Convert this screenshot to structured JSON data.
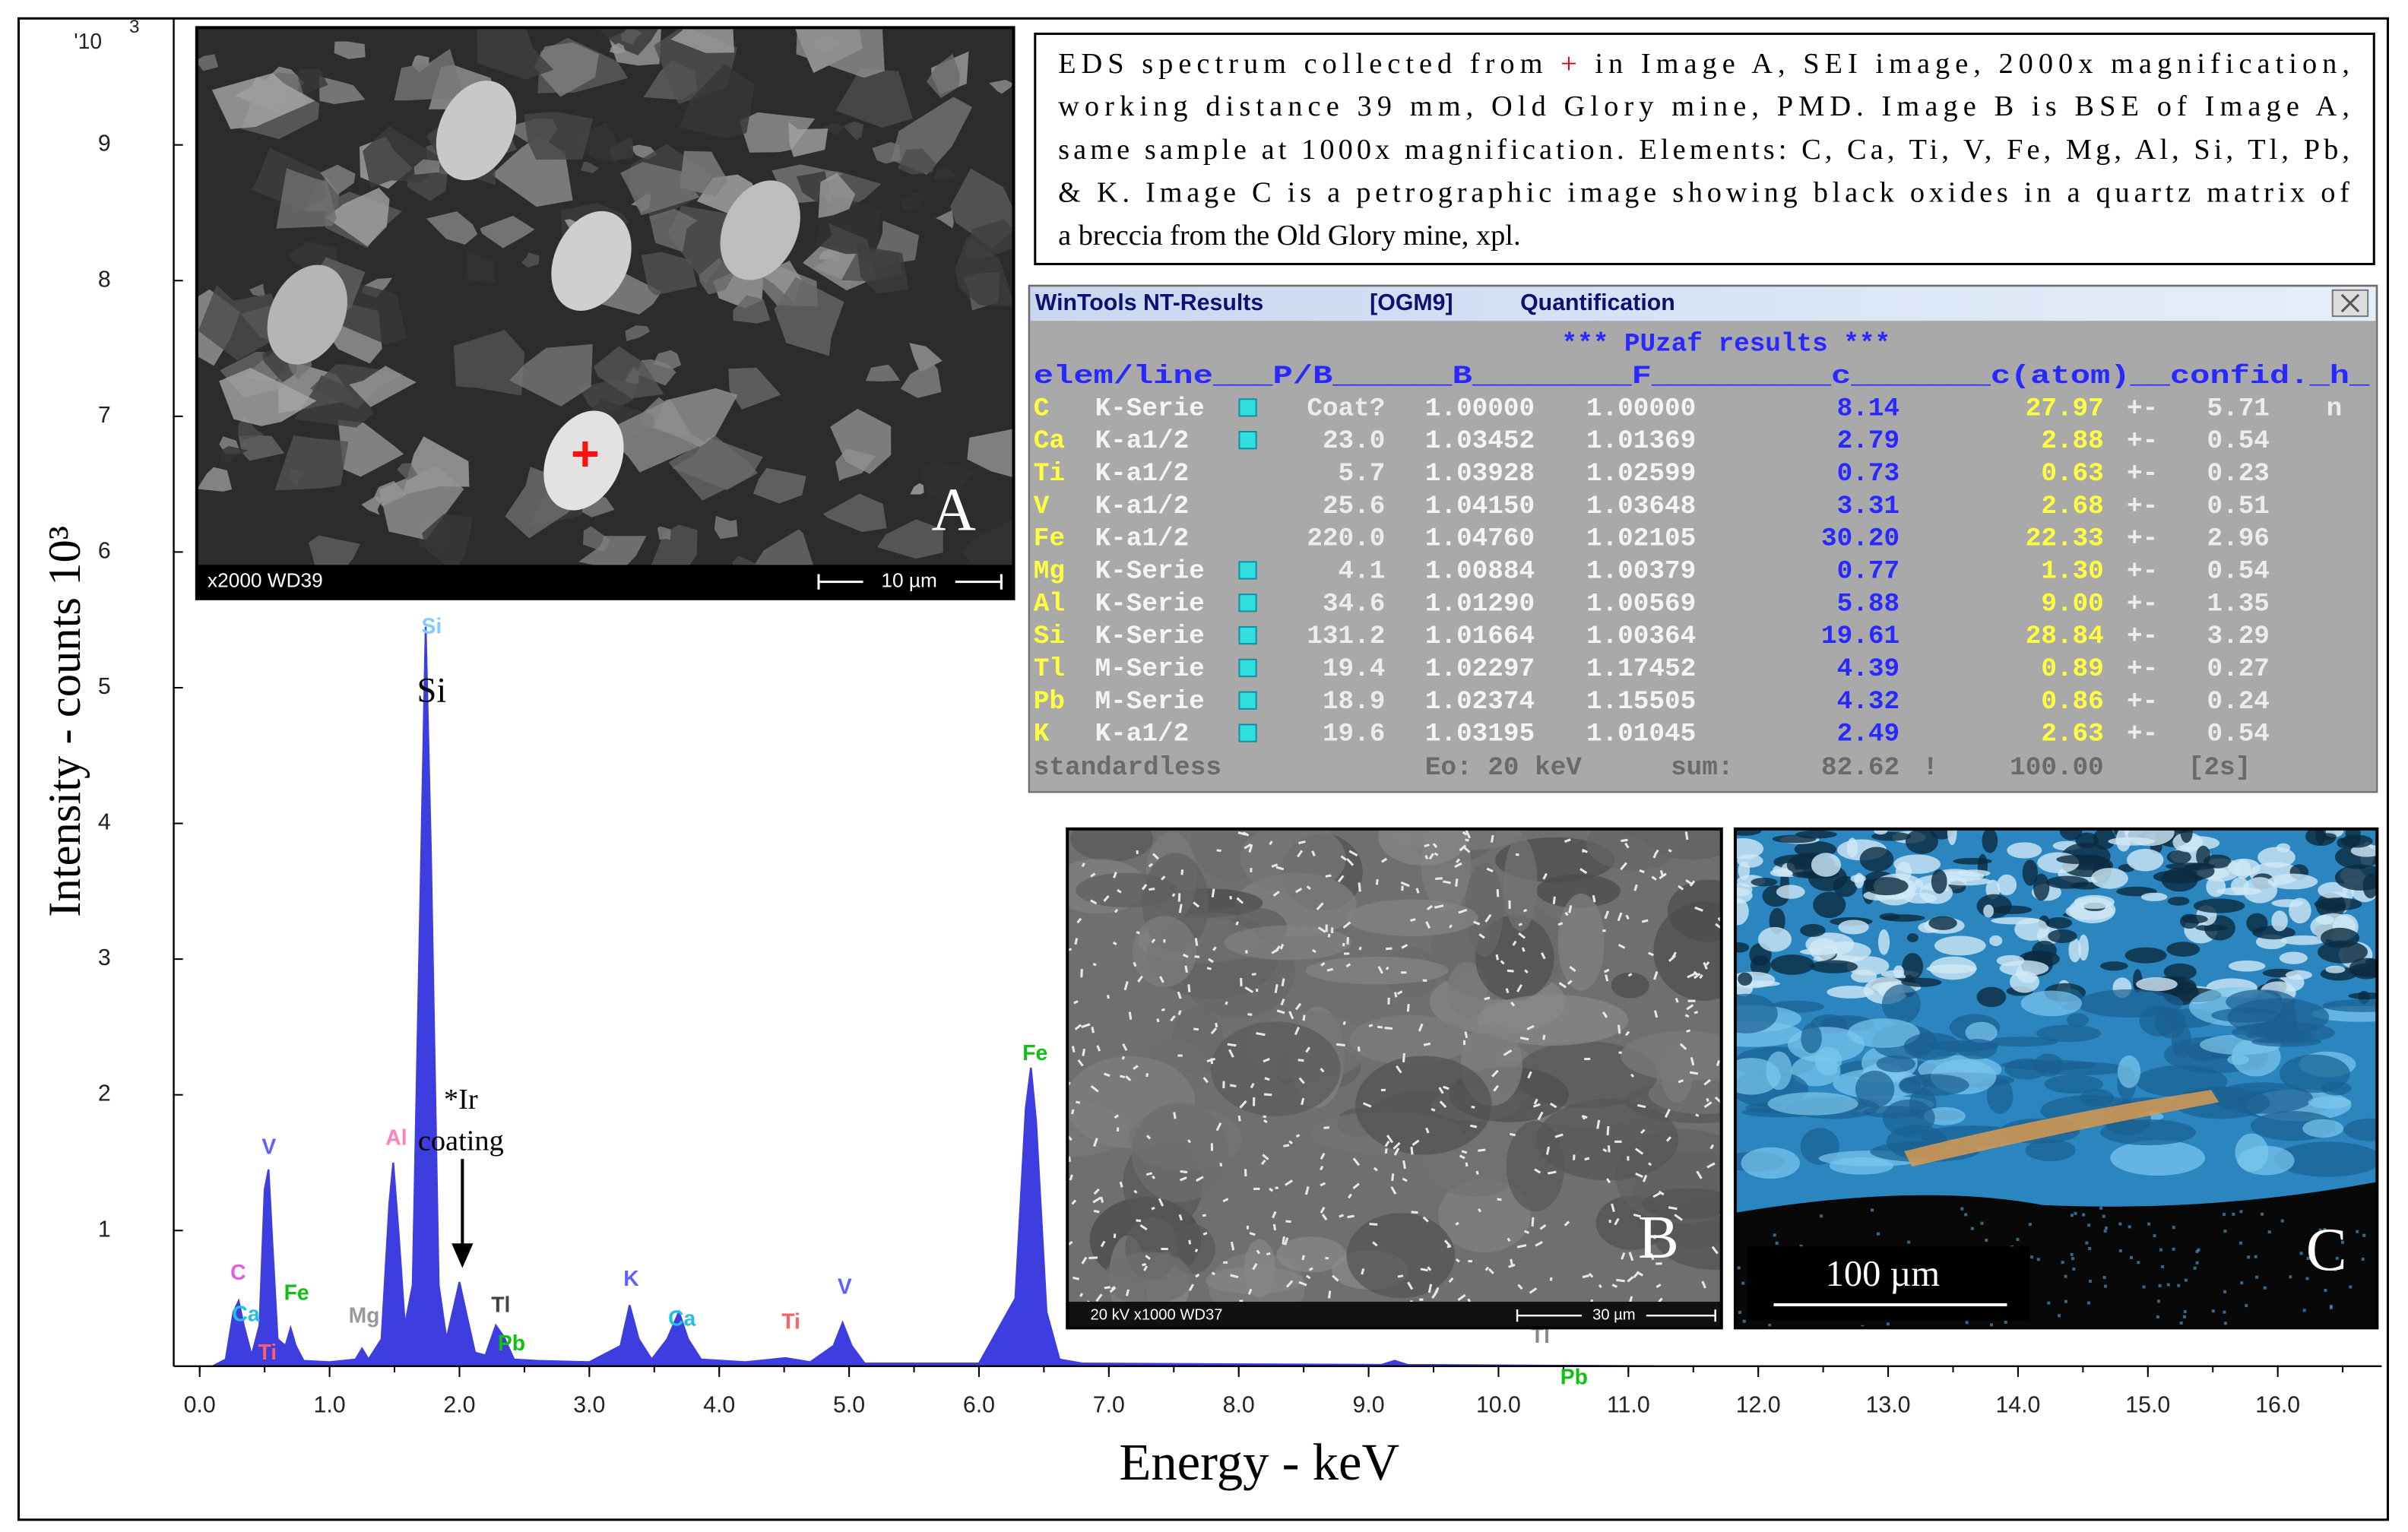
{
  "chart_data": {
    "type": "area",
    "color": "#3d3de0",
    "y_label": "Intensity - counts 10³",
    "x_label": "Energy - keV",
    "y_multiplier": "'10",
    "y_multiplier_exponent": "3",
    "xlim": [
      -0.2,
      16.8
    ],
    "ylim": [
      0,
      10
    ],
    "xticks": [
      {
        "value": 0,
        "label": "0.0"
      },
      {
        "value": 1,
        "label": "1.0"
      },
      {
        "value": 2,
        "label": "2.0"
      },
      {
        "value": 3,
        "label": "3.0"
      },
      {
        "value": 4,
        "label": "4.0"
      },
      {
        "value": 5,
        "label": "5.0"
      },
      {
        "value": 6,
        "label": "6.0"
      },
      {
        "value": 7,
        "label": "7.0"
      },
      {
        "value": 8,
        "label": "8.0"
      },
      {
        "value": 9,
        "label": "9.0"
      },
      {
        "value": 10,
        "label": "10.0"
      },
      {
        "value": 11,
        "label": "11.0"
      },
      {
        "value": 12,
        "label": "12.0"
      },
      {
        "value": 13,
        "label": "13.0"
      },
      {
        "value": 14,
        "label": "14.0"
      },
      {
        "value": 15,
        "label": "15.0"
      },
      {
        "value": 16,
        "label": "16.0"
      }
    ],
    "yticks": [
      1,
      2,
      3,
      4,
      5,
      6,
      7,
      8,
      9
    ],
    "x": [
      0.1,
      0.2,
      0.26,
      0.3,
      0.34,
      0.4,
      0.46,
      0.5,
      0.53,
      0.56,
      0.6,
      0.66,
      0.7,
      0.74,
      0.8,
      1.0,
      1.2,
      1.25,
      1.3,
      1.4,
      1.46,
      1.49,
      1.53,
      1.58,
      1.64,
      1.7,
      1.74,
      1.78,
      1.84,
      1.9,
      1.96,
      2.0,
      2.05,
      2.12,
      2.2,
      2.28,
      2.34,
      2.42,
      2.6,
      3.0,
      3.24,
      3.31,
      3.38,
      3.48,
      3.6,
      3.69,
      3.76,
      3.86,
      4.2,
      4.51,
      4.7,
      4.88,
      4.95,
      5.02,
      5.12,
      6.0,
      6.28,
      6.36,
      6.4,
      6.44,
      6.52,
      6.62,
      6.8,
      9.1,
      9.2,
      9.3,
      11.2
    ],
    "values": [
      0,
      0.05,
      0.4,
      0.48,
      0.3,
      0.08,
      0.3,
      1.3,
      1.45,
      0.9,
      0.2,
      0.15,
      0.28,
      0.15,
      0.04,
      0.03,
      0.05,
      0.13,
      0.05,
      0.2,
      1.2,
      1.5,
      1.0,
      0.3,
      0.6,
      3.5,
      5.45,
      3.8,
      0.6,
      0.2,
      0.45,
      0.62,
      0.4,
      0.1,
      0.08,
      0.3,
      0.22,
      0.05,
      0.04,
      0.03,
      0.15,
      0.45,
      0.2,
      0.05,
      0.2,
      0.4,
      0.2,
      0.05,
      0.03,
      0.06,
      0.03,
      0.15,
      0.32,
      0.15,
      0.02,
      0.02,
      0.5,
      1.9,
      2.2,
      1.8,
      0.4,
      0.05,
      0.02,
      0.01,
      0.04,
      0.01,
      0
    ],
    "peak_labels": [
      "C",
      "Ca",
      "Ti",
      "V",
      "Fe",
      "Mg",
      "Al",
      "Si",
      "Tl",
      "Pb",
      "K",
      "Ca",
      "Ti",
      "V",
      "Fe",
      "Tl",
      "Pb"
    ],
    "annotations": [
      "Si",
      "*Ir",
      "coating"
    ]
  },
  "image_a": {
    "info": "x2000   WD39",
    "scale": "10 µm",
    "label": "A",
    "marker": "+"
  },
  "image_b": {
    "info": "20 kV    x1000     WD37",
    "scale": "30 µm",
    "label": "B"
  },
  "image_c": {
    "scale": "100 µm",
    "label": "C"
  },
  "caption": {
    "first": [
      "EDS spectrum collected from",
      "+",
      "in Image A, SEI image, 2000x magnification,"
    ],
    "lines": [
      "working distance 39 mm, Old Glory mine, PMD. Image B is BSE of Image A,",
      "same sample at 1000x magnification. Elements: C, Ca, Ti, V, Fe, Mg, Al, Si, Tl, Pb,",
      "& K. Image C is a petrographic image showing black oxides in a quartz matrix of",
      "a breccia from the Old Glory mine, xpl."
    ]
  },
  "results_window": {
    "title": [
      "WinTools NT-Results",
      "[OGM9]",
      "Quantification"
    ],
    "subtitle": "*** PUzaf results ***",
    "header": "elem/line___P/B______B________F_________c_______c(atom)__confid._h_",
    "rows": [
      [
        "C",
        "K-Serie",
        "Coat?",
        "1.00000",
        "1.00000",
        "8.14",
        "27.97",
        "+-",
        "5.71",
        "n"
      ],
      [
        "Ca",
        "K-a1/2",
        "23.0",
        "1.03452",
        "1.01369",
        "2.79",
        "2.88",
        "+-",
        "0.54"
      ],
      [
        "Ti",
        "K-a1/2",
        "5.7",
        "1.03928",
        "1.02599",
        "0.73",
        "0.63",
        "+-",
        "0.23"
      ],
      [
        "V",
        "K-a1/2",
        "25.6",
        "1.04150",
        "1.03648",
        "3.31",
        "2.68",
        "+-",
        "0.51"
      ],
      [
        "Fe",
        "K-a1/2",
        "220.0",
        "1.04760",
        "1.02105",
        "30.20",
        "22.33",
        "+-",
        "2.96"
      ],
      [
        "Mg",
        "K-Serie",
        "4.1",
        "1.00884",
        "1.00379",
        "0.77",
        "1.30",
        "+-",
        "0.54"
      ],
      [
        "Al",
        "K-Serie",
        "34.6",
        "1.01290",
        "1.00569",
        "5.88",
        "9.00",
        "+-",
        "1.35"
      ],
      [
        "Si",
        "K-Serie",
        "131.2",
        "1.01664",
        "1.00364",
        "19.61",
        "28.84",
        "+-",
        "3.29"
      ],
      [
        "Tl",
        "M-Serie",
        "19.4",
        "1.02297",
        "1.17452",
        "4.39",
        "0.89",
        "+-",
        "0.27"
      ],
      [
        "Pb",
        "M-Serie",
        "18.9",
        "1.02374",
        "1.15505",
        "4.32",
        "0.86",
        "+-",
        "0.24"
      ],
      [
        "K",
        "K-a1/2",
        "19.6",
        "1.03195",
        "1.01045",
        "2.49",
        "2.63",
        "+-",
        "0.54"
      ]
    ],
    "footer": [
      "standardless",
      "Eo: 20 keV",
      "sum:",
      "82.62",
      "!",
      "100.00",
      "[2s]"
    ]
  }
}
